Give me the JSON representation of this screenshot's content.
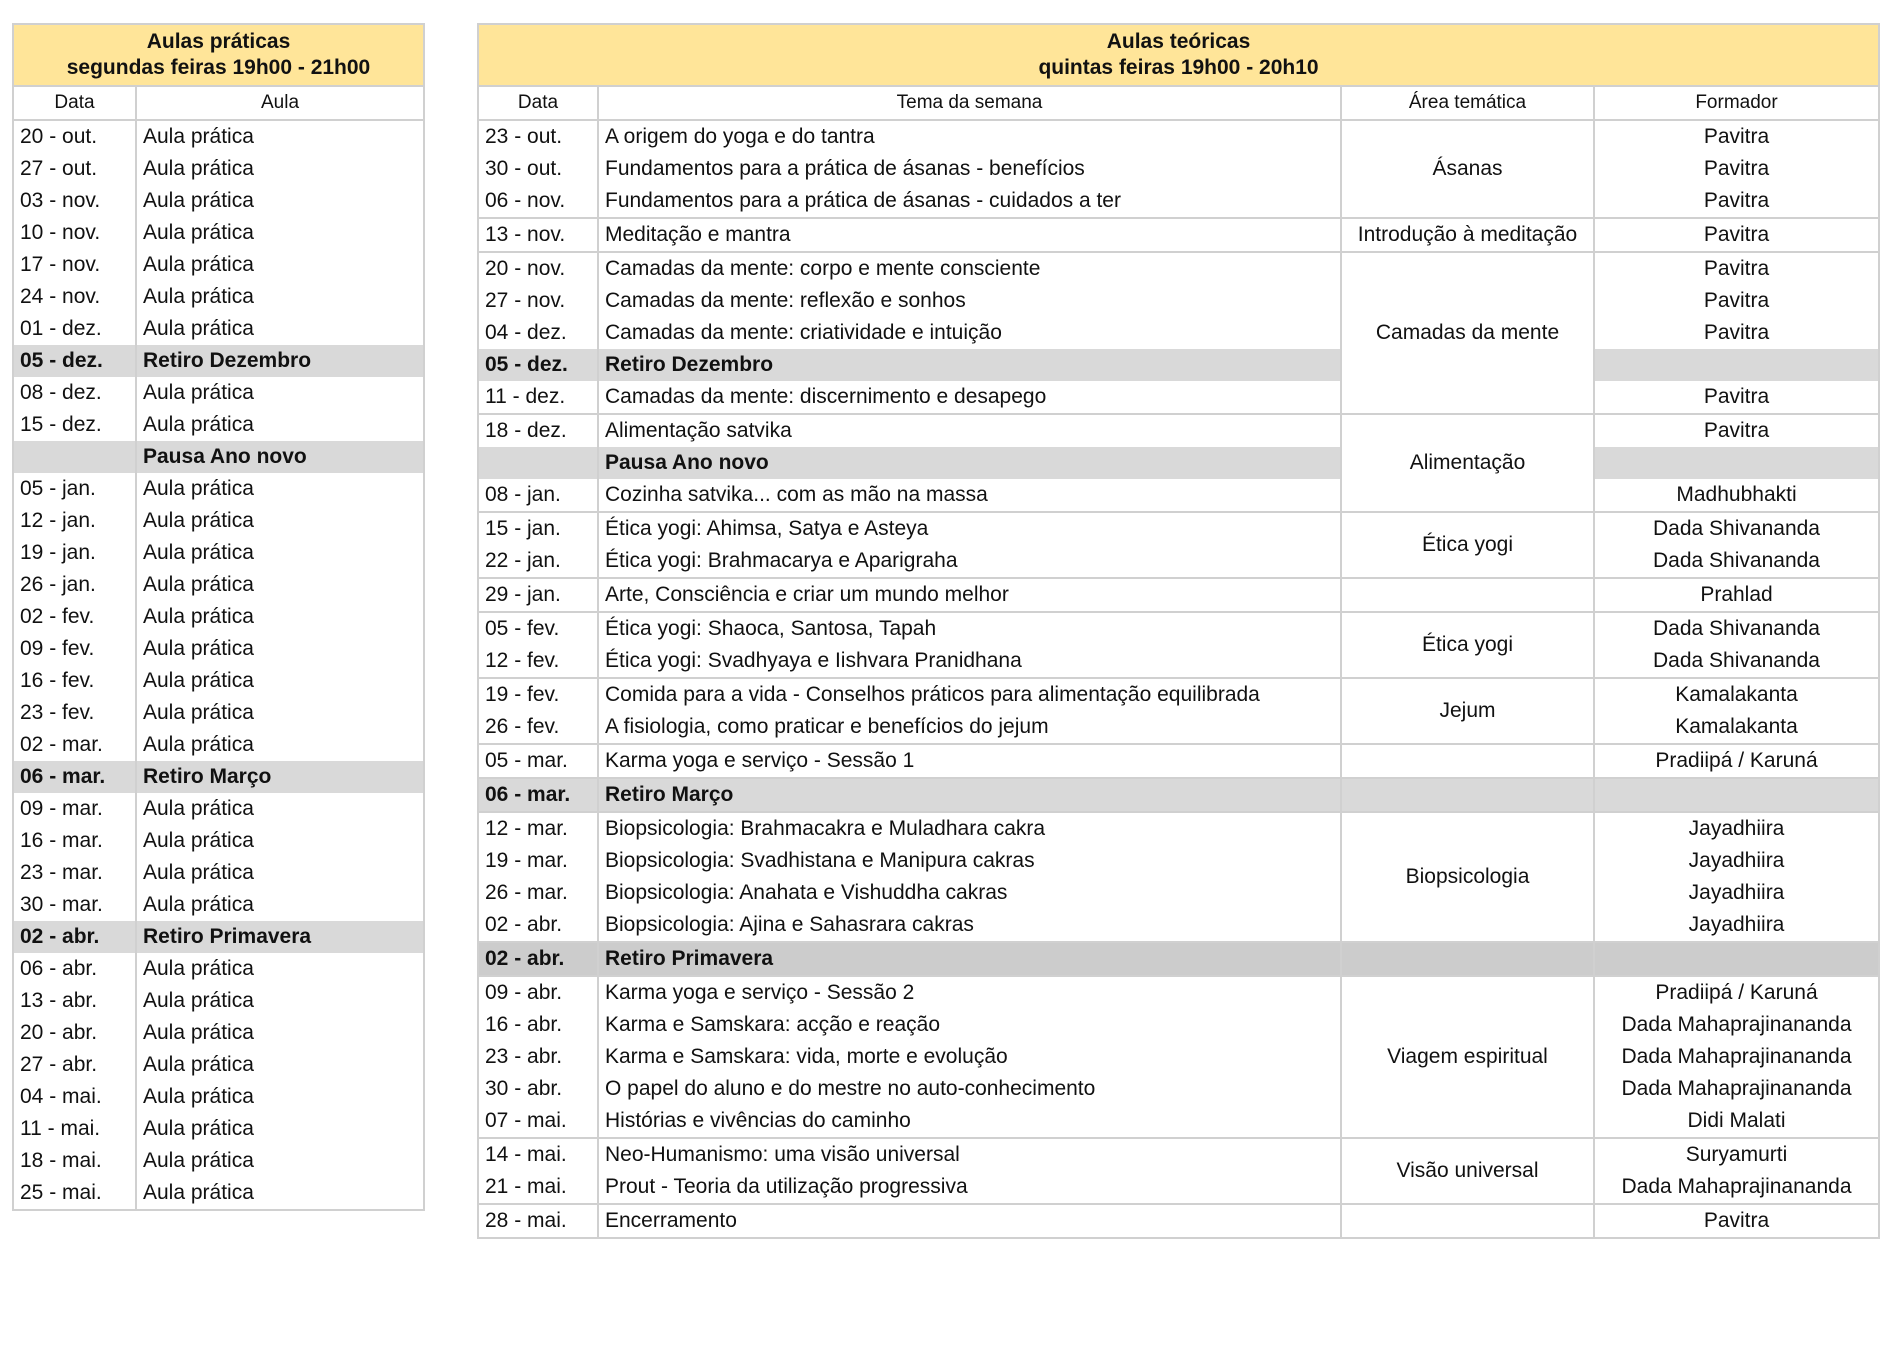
{
  "practical": {
    "title": "Aulas práticas",
    "subtitle": "segundas feiras 19h00 - 21h00",
    "headers": [
      "Data",
      "Aula"
    ],
    "rows": [
      {
        "date": "20 - out.",
        "aula": "Aula prática"
      },
      {
        "date": "27 - out.",
        "aula": "Aula prática"
      },
      {
        "date": "03 - nov.",
        "aula": "Aula prática"
      },
      {
        "date": "10 - nov.",
        "aula": "Aula prática"
      },
      {
        "date": "17 - nov.",
        "aula": "Aula prática"
      },
      {
        "date": "24 - nov.",
        "aula": "Aula prática"
      },
      {
        "date": "01 - dez.",
        "aula": "Aula prática"
      },
      {
        "date": "05 - dez.",
        "aula": "Retiro Dezembro",
        "highlight": true
      },
      {
        "date": "08 - dez.",
        "aula": "Aula prática"
      },
      {
        "date": "15 - dez.",
        "aula": "Aula prática"
      },
      {
        "date": "",
        "aula": "Pausa Ano novo",
        "highlight": true
      },
      {
        "date": "05 - jan.",
        "aula": "Aula prática"
      },
      {
        "date": "12 - jan.",
        "aula": "Aula prática"
      },
      {
        "date": "19 - jan.",
        "aula": "Aula prática"
      },
      {
        "date": "26 - jan.",
        "aula": "Aula prática"
      },
      {
        "date": "02 - fev.",
        "aula": "Aula prática"
      },
      {
        "date": "09 - fev.",
        "aula": "Aula prática"
      },
      {
        "date": "16 - fev.",
        "aula": "Aula prática"
      },
      {
        "date": "23 - fev.",
        "aula": "Aula prática"
      },
      {
        "date": "02 - mar.",
        "aula": "Aula prática"
      },
      {
        "date": "06 - mar.",
        "aula": "Retiro Março",
        "highlight": true
      },
      {
        "date": "09 - mar.",
        "aula": "Aula prática"
      },
      {
        "date": "16 - mar.",
        "aula": "Aula prática"
      },
      {
        "date": "23 - mar.",
        "aula": "Aula prática"
      },
      {
        "date": "30 - mar.",
        "aula": "Aula prática"
      },
      {
        "date": "02 - abr.",
        "aula": "Retiro Primavera",
        "highlight": true
      },
      {
        "date": "06 - abr.",
        "aula": "Aula prática"
      },
      {
        "date": "13 - abr.",
        "aula": "Aula prática"
      },
      {
        "date": "20 - abr.",
        "aula": "Aula prática"
      },
      {
        "date": "27 - abr.",
        "aula": "Aula prática"
      },
      {
        "date": "04 - mai.",
        "aula": "Aula prática"
      },
      {
        "date": "11 - mai.",
        "aula": "Aula prática"
      },
      {
        "date": "18 - mai.",
        "aula": "Aula prática"
      },
      {
        "date": "25 - mai.",
        "aula": "Aula prática"
      }
    ]
  },
  "theory": {
    "title": "Aulas teóricas",
    "subtitle": "quintas feiras 19h00 - 20h10",
    "headers": [
      "Data",
      "Tema da semana",
      "Área temática",
      "Formador"
    ],
    "rows": [
      {
        "date": "23 - out.",
        "tema": "A origem do yoga e do tantra",
        "formador": "Pavitra"
      },
      {
        "date": "30 - out.",
        "tema": "Fundamentos para a prática de ásanas - benefícios",
        "formador": "Pavitra"
      },
      {
        "date": "06 - nov.",
        "tema": "Fundamentos para a prática de ásanas - cuidados a ter",
        "formador": "Pavitra"
      },
      {
        "date": "13 - nov.",
        "tema": "Meditação e mantra",
        "formador": "Pavitra"
      },
      {
        "date": "20 - nov.",
        "tema": "Camadas da mente: corpo e mente consciente",
        "formador": "Pavitra"
      },
      {
        "date": "27 - nov.",
        "tema": "Camadas da mente: reflexão e sonhos",
        "formador": "Pavitra"
      },
      {
        "date": "04 - dez.",
        "tema": "Camadas da mente: criatividade e intuição",
        "formador": "Pavitra"
      },
      {
        "date": "05 - dez.",
        "tema": "Retiro Dezembro",
        "formador": "",
        "highlight": true
      },
      {
        "date": "11 - dez.",
        "tema": "Camadas da mente: discernimento e desapego",
        "formador": "Pavitra"
      },
      {
        "date": "18 - dez.",
        "tema": "Alimentação satvika",
        "formador": "Pavitra"
      },
      {
        "date": "",
        "tema": "Pausa Ano novo",
        "formador": "",
        "highlight": true
      },
      {
        "date": "08 - jan.",
        "tema": "Cozinha satvika... com as mão na massa",
        "formador": "Madhubhakti"
      },
      {
        "date": "15 - jan.",
        "tema": "Ética yogi: Ahimsa, Satya e Asteya",
        "formador": "Dada Shivananda"
      },
      {
        "date": "22 - jan.",
        "tema": "Ética yogi: Brahmacarya e Aparigraha",
        "formador": "Dada Shivananda"
      },
      {
        "date": "29 - jan.",
        "tema": "Arte, Consciência e criar um mundo melhor",
        "formador": "Prahlad"
      },
      {
        "date": "05 - fev.",
        "tema": "Ética yogi: Shaoca, Santosa, Tapah",
        "formador": "Dada Shivananda"
      },
      {
        "date": "12 - fev.",
        "tema": "Ética yogi: Svadhyaya e Iishvara Pranidhana",
        "formador": "Dada Shivananda"
      },
      {
        "date": "19 - fev.",
        "tema": "Comida para a vida - Conselhos práticos para alimentação equilibrada",
        "formador": "Kamalakanta"
      },
      {
        "date": "26 - fev.",
        "tema": "A fisiologia, como praticar e benefícios do jejum",
        "formador": "Kamalakanta"
      },
      {
        "date": "05 - mar.",
        "tema": "Karma yoga e serviço - Sessão 1",
        "formador": "Pradiipá / Karuná"
      },
      {
        "date": "06 - mar.",
        "tema": "Retiro Março",
        "formador": "",
        "highlight": true,
        "full": true
      },
      {
        "date": "12 - mar.",
        "tema": "Biopsicologia: Brahmacakra e Muladhara cakra",
        "formador": "Jayadhiira"
      },
      {
        "date": "19 - mar.",
        "tema": "Biopsicologia: Svadhistana e Manipura cakras",
        "formador": "Jayadhiira"
      },
      {
        "date": "26 - mar.",
        "tema": "Biopsicologia: Anahata e Vishuddha cakras",
        "formador": "Jayadhiira"
      },
      {
        "date": "02 - abr.",
        "tema": "Biopsicologia: Ajina e Sahasrara cakras",
        "formador": "Jayadhiira"
      },
      {
        "date": "02 - abr.",
        "tema": "Retiro Primavera",
        "formador": "",
        "highlight": true,
        "full": true,
        "dark": true
      },
      {
        "date": "09 - abr.",
        "tema": "Karma yoga e serviço - Sessão 2",
        "formador": "Pradiipá / Karuná"
      },
      {
        "date": "16 - abr.",
        "tema": "Karma e Samskara: acção e reação",
        "formador": "Dada Mahaprajinananda"
      },
      {
        "date": "23 - abr.",
        "tema": "Karma e Samskara: vida, morte e evolução",
        "formador": "Dada Mahaprajinananda"
      },
      {
        "date": "30 - abr.",
        "tema": "O papel do aluno e do mestre no auto-conhecimento",
        "formador": "Dada Mahaprajinananda"
      },
      {
        "date": "07 - mai.",
        "tema": "Histórias e vivências do caminho",
        "formador": "Didi Malati"
      },
      {
        "date": "14 - mai.",
        "tema": "Neo-Humanismo: uma visão universal",
        "formador": "Suryamurti"
      },
      {
        "date": "21 - mai.",
        "tema": "Prout - Teoria da utilização progressiva",
        "formador": "Dada Mahaprajinananda"
      },
      {
        "date": "28 - mai.",
        "tema": "Encerramento",
        "formador": "Pavitra"
      }
    ],
    "areas": [
      {
        "label": "Ásanas",
        "span": 3
      },
      {
        "label": "Introdução à meditação",
        "span": 1
      },
      {
        "label": "Camadas da mente",
        "span": 5
      },
      {
        "label": "Alimentação",
        "span": 3
      },
      {
        "label": "Ética yogi",
        "span": 2
      },
      {
        "label": "",
        "span": 1
      },
      {
        "label": "Ética yogi",
        "span": 2
      },
      {
        "label": "Jejum",
        "span": 2
      },
      {
        "label": "",
        "span": 1
      },
      {
        "label": "",
        "span": 1,
        "gray": true
      },
      {
        "label": "Biopsicologia",
        "span": 4
      },
      {
        "label": "",
        "span": 1,
        "gray": true
      },
      {
        "label": "Viagem espiritual",
        "span": 5
      },
      {
        "label": "Visão universal",
        "span": 2
      },
      {
        "label": "",
        "span": 1
      }
    ]
  },
  "colors": {
    "header": "#ffe599",
    "highlight": "#d9d9d9",
    "border": "#d0d0d0"
  }
}
